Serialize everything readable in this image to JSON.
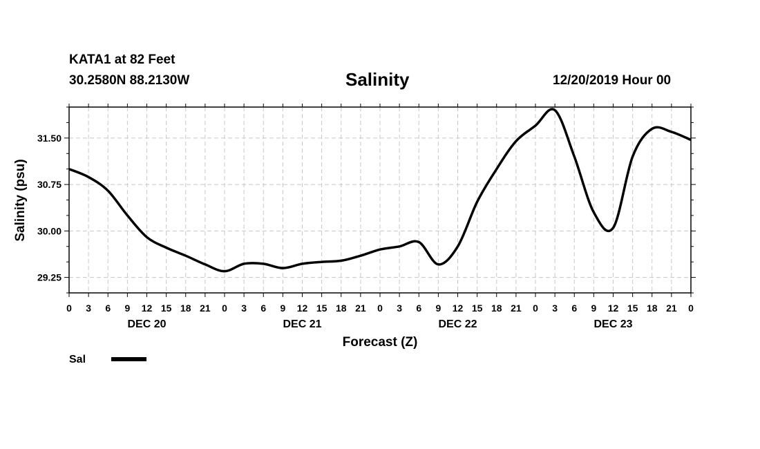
{
  "header": {
    "station": "KATA1 at 82 Feet",
    "coords": "30.2580N 88.2130W",
    "datetime": "12/20/2019 Hour 00"
  },
  "chart_data": {
    "type": "line",
    "title": "Salinity",
    "xlabel": "Forecast (Z)",
    "ylabel": "Salinity (psu)",
    "ylim": [
      29.0,
      32.0
    ],
    "yticks": [
      "29.25",
      "30.00",
      "30.75",
      "31.50"
    ],
    "xlim_hours": [
      0,
      96
    ],
    "xtick_step_hours": 3,
    "xtick_labels": [
      "0",
      "3",
      "6",
      "9",
      "12",
      "15",
      "18",
      "21",
      "0",
      "3",
      "6",
      "9",
      "12",
      "15",
      "18",
      "21",
      "0",
      "3",
      "6",
      "9",
      "12",
      "15",
      "18",
      "21",
      "0",
      "3",
      "6",
      "9",
      "12",
      "15",
      "18",
      "21",
      "0"
    ],
    "day_labels": [
      "DEC 20",
      "DEC 21",
      "DEC 22",
      "DEC 23"
    ],
    "grid": true,
    "legend": [
      {
        "name": "Sal",
        "color": "#000000"
      }
    ],
    "series": [
      {
        "name": "Sal",
        "x": [
          0,
          3,
          6,
          9,
          12,
          15,
          18,
          21,
          24,
          27,
          30,
          33,
          36,
          39,
          42,
          45,
          48,
          51,
          54,
          57,
          60,
          63,
          66,
          69,
          72,
          75,
          78,
          81,
          84,
          87,
          90,
          93,
          96
        ],
        "values": [
          31.0,
          30.87,
          30.65,
          30.25,
          29.9,
          29.73,
          29.6,
          29.46,
          29.35,
          29.47,
          29.47,
          29.4,
          29.47,
          29.5,
          29.52,
          29.6,
          29.7,
          29.75,
          29.82,
          29.46,
          29.75,
          30.47,
          31.0,
          31.45,
          31.7,
          31.95,
          31.2,
          30.3,
          30.05,
          31.2,
          31.65,
          31.6,
          31.47
        ]
      }
    ]
  }
}
